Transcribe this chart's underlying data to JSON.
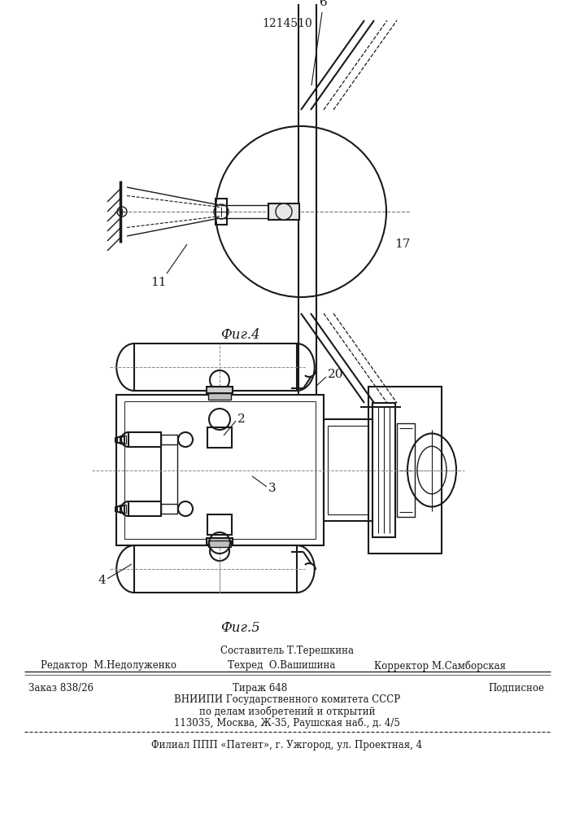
{
  "title": "1214510",
  "fig4_label": "Фиг.4",
  "fig5_label": "Фиг.5",
  "label_6": "6",
  "label_11": "11",
  "label_17": "17",
  "label_2": "2",
  "label_3": "3",
  "label_4": "4",
  "label_20": "20",
  "footer_line1": "Составитель Т.Терешкина",
  "footer_line2_left": "Редактор  М.Недолуженко",
  "footer_line2_mid": "Техред  О.Вашишина",
  "footer_line2_right": "Корректор М.Самборская",
  "footer_line3_left": "Заказ 838/26",
  "footer_line3_mid": "Тираж 648",
  "footer_line3_right": "Подписное",
  "footer_line4": "ВНИИПИ Государственного комитета СССР",
  "footer_line5": "по делам изобретений и открытий",
  "footer_line6": "113035, Москва, Ж-35, Раушская наб., д. 4/5",
  "footer_line7": "Филиал ППП «Патент», г. Ужгород, ул. Проектная, 4",
  "bg_color": "#ffffff",
  "line_color": "#1a1a1a"
}
